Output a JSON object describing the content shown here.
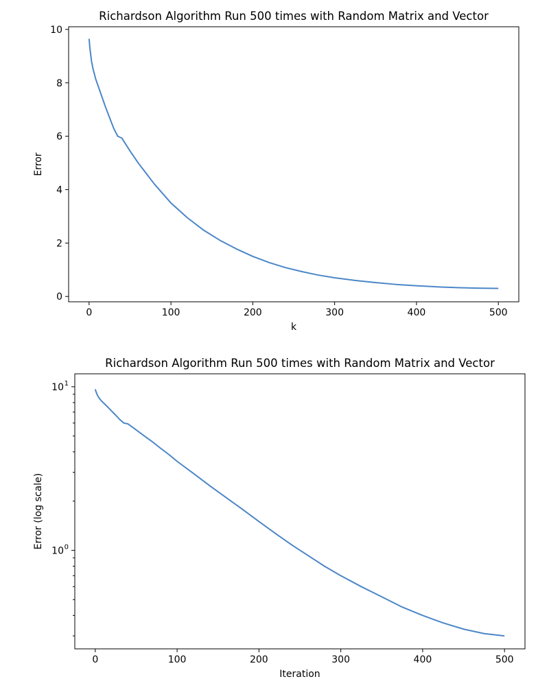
{
  "chart_data": [
    {
      "type": "line",
      "title": "Richardson Algorithm Run 500 times with Random Matrix and Vector",
      "xlabel": "k",
      "ylabel": "Error",
      "yscale": "linear",
      "xlim": [
        -25,
        525
      ],
      "ylim": [
        -0.2,
        10.1
      ],
      "xticks": [
        "0",
        "100",
        "200",
        "300",
        "400",
        "500"
      ],
      "yticks": [
        "0",
        "2",
        "4",
        "6",
        "8",
        "10"
      ],
      "color": "#4a86c8",
      "x": [
        0,
        1,
        2,
        3,
        5,
        8,
        12,
        16,
        20,
        25,
        30,
        35,
        40,
        50,
        60,
        70,
        80,
        90,
        100,
        120,
        140,
        160,
        180,
        200,
        220,
        240,
        260,
        280,
        300,
        325,
        350,
        375,
        400,
        425,
        450,
        475,
        500
      ],
      "y": [
        9.65,
        9.3,
        9.05,
        8.8,
        8.5,
        8.15,
        7.8,
        7.45,
        7.1,
        6.7,
        6.3,
        6.0,
        5.93,
        5.45,
        5.0,
        4.6,
        4.2,
        3.85,
        3.5,
        2.95,
        2.48,
        2.1,
        1.78,
        1.5,
        1.27,
        1.08,
        0.93,
        0.8,
        0.7,
        0.6,
        0.52,
        0.45,
        0.4,
        0.36,
        0.33,
        0.31,
        0.3
      ]
    },
    {
      "type": "line",
      "title": "Richardson Algorithm Run 500 times with Random Matrix and Vector",
      "xlabel": "Iteration",
      "ylabel": "Error (log scale)",
      "yscale": "log",
      "xlim": [
        -25,
        525
      ],
      "ylim": [
        0.25,
        12
      ],
      "xticks": [
        "0",
        "100",
        "200",
        "300",
        "400",
        "500"
      ],
      "yticks": [
        {
          "base": "10",
          "exp": "1",
          "value": 10
        },
        {
          "base": "10",
          "exp": "0",
          "value": 1
        }
      ],
      "color": "#4a86c8",
      "x": [
        0,
        1,
        2,
        3,
        5,
        8,
        12,
        16,
        20,
        25,
        30,
        35,
        40,
        50,
        60,
        70,
        80,
        90,
        100,
        120,
        140,
        160,
        180,
        200,
        220,
        240,
        260,
        280,
        300,
        325,
        350,
        375,
        400,
        425,
        450,
        475,
        500
      ],
      "y": [
        9.65,
        9.3,
        9.05,
        8.8,
        8.5,
        8.15,
        7.8,
        7.45,
        7.1,
        6.7,
        6.3,
        6.0,
        5.93,
        5.45,
        5.0,
        4.6,
        4.2,
        3.85,
        3.5,
        2.95,
        2.48,
        2.1,
        1.78,
        1.5,
        1.27,
        1.08,
        0.93,
        0.8,
        0.7,
        0.6,
        0.52,
        0.45,
        0.4,
        0.36,
        0.33,
        0.31,
        0.3
      ]
    }
  ]
}
